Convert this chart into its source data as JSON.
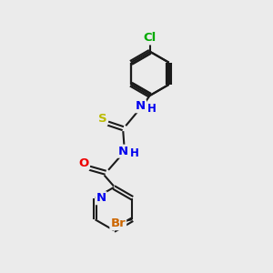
{
  "background_color": "#ebebeb",
  "bond_color": "#1a1a1a",
  "atom_colors": {
    "N": "#0000ee",
    "O": "#ee0000",
    "S": "#bbbb00",
    "Br": "#cc6600",
    "Cl": "#00aa00",
    "C": "#1a1a1a",
    "H": "#0000ee"
  },
  "figsize": [
    3.0,
    3.0
  ],
  "dpi": 100,
  "xlim": [
    0,
    10
  ],
  "ylim": [
    0,
    10
  ]
}
